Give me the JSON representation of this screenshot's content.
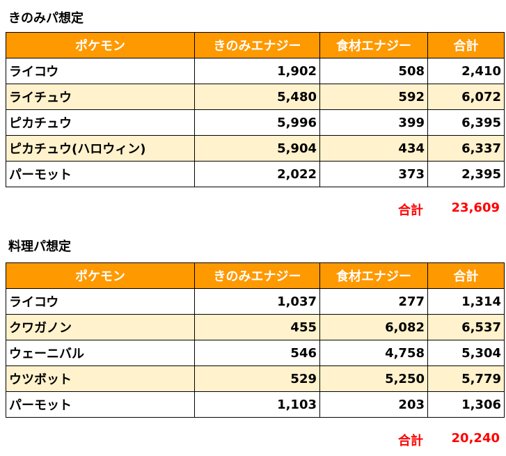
{
  "tables": [
    {
      "title": "きのみパ想定",
      "headers": [
        "ポケモン",
        "きのみエナジー",
        "食材エナジー",
        "合計"
      ],
      "rows": [
        {
          "name": "ライコウ",
          "berry": "1,902",
          "ingredient": "508",
          "total": "2,410"
        },
        {
          "name": "ライチュウ",
          "berry": "5,480",
          "ingredient": "592",
          "total": "6,072"
        },
        {
          "name": "ピカチュウ",
          "berry": "5,996",
          "ingredient": "399",
          "total": "6,395"
        },
        {
          "name": "ピカチュウ(ハロウィン)",
          "berry": "5,904",
          "ingredient": "434",
          "total": "6,337"
        },
        {
          "name": "パーモット",
          "berry": "2,022",
          "ingredient": "373",
          "total": "2,395"
        }
      ],
      "total_label": "合計",
      "total_value": "23,609"
    },
    {
      "title": "料理パ想定",
      "headers": [
        "ポケモン",
        "きのみエナジー",
        "食材エナジー",
        "合計"
      ],
      "rows": [
        {
          "name": "ライコウ",
          "berry": "1,037",
          "ingredient": "277",
          "total": "1,314"
        },
        {
          "name": "クワガノン",
          "berry": "455",
          "ingredient": "6,082",
          "total": "6,537"
        },
        {
          "name": "ウェーニバル",
          "berry": "546",
          "ingredient": "4,758",
          "total": "5,304"
        },
        {
          "name": "ウツボット",
          "berry": "529",
          "ingredient": "5,250",
          "total": "5,779"
        },
        {
          "name": "パーモット",
          "berry": "1,103",
          "ingredient": "203",
          "total": "1,306"
        }
      ],
      "total_label": "合計",
      "total_value": "20,240"
    }
  ],
  "colors": {
    "header_bg": "#ff9900",
    "header_text": "#ffffff",
    "alt_row_bg": "#fff2cc",
    "total_text": "#ff0000"
  }
}
